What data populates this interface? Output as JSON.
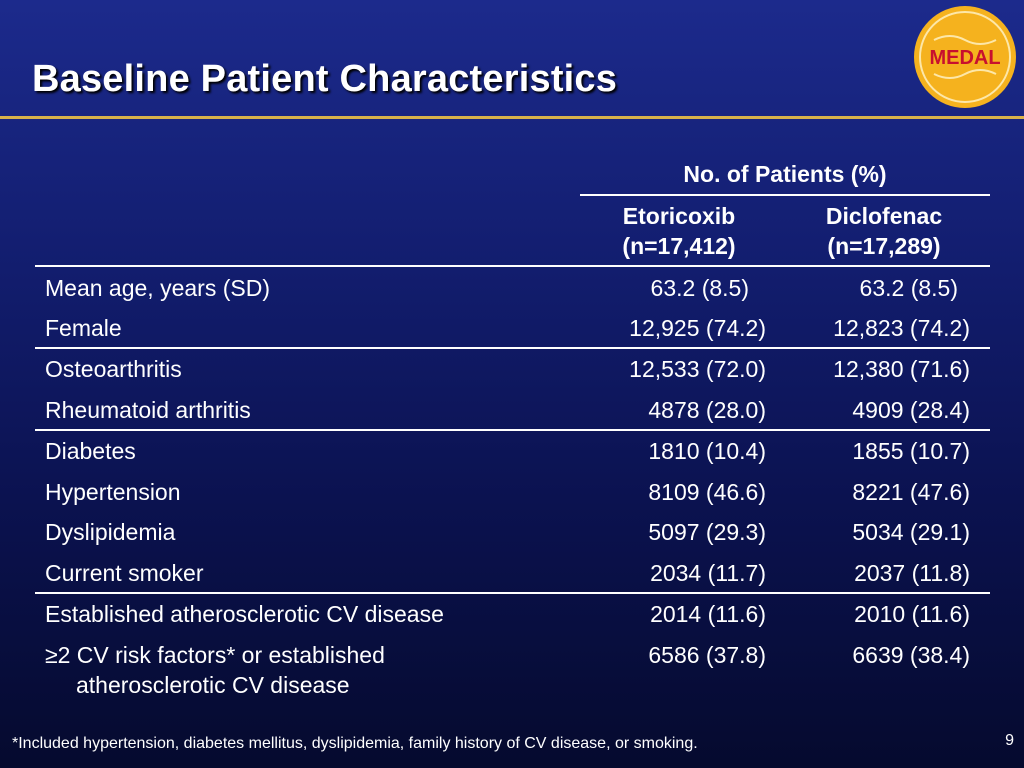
{
  "slide": {
    "title": "Baseline Patient Characteristics",
    "logo_text": "MEDAL",
    "page_number": "9",
    "footnote": "*Included hypertension, diabetes mellitus, dyslipidemia, family history of CV disease, or smoking.",
    "colors": {
      "title_rule": "#d8b24a",
      "logo": "#f5b21e",
      "logo_text": "#c8102e"
    }
  },
  "table": {
    "group_header": "No. of Patients (%)",
    "columns": [
      {
        "name": "Etoricoxib",
        "n": "(n=17,412)"
      },
      {
        "name": "Diclofenac",
        "n": "(n=17,289)"
      }
    ],
    "rows": [
      {
        "label": "Mean age, years (SD)",
        "v1": "63.2 (8.5)",
        "v2": "63.2 (8.5)"
      },
      {
        "label": "Female",
        "v1": "12,925 (74.2)",
        "v2": "12,823 (74.2)"
      },
      {
        "label": "Osteoarthritis",
        "v1": "12,533 (72.0)",
        "v2": "12,380 (71.6)"
      },
      {
        "label": "Rheumatoid arthritis",
        "v1": "4878 (28.0)",
        "v2": "4909 (28.4)"
      },
      {
        "label": "Diabetes",
        "v1": "1810 (10.4)",
        "v2": "1855 (10.7)"
      },
      {
        "label": "Hypertension",
        "v1": "8109 (46.6)",
        "v2": "8221 (47.6)"
      },
      {
        "label": "Dyslipidemia",
        "v1": "5097 (29.3)",
        "v2": "5034 (29.1)"
      },
      {
        "label": "Current smoker",
        "v1": "2034 (11.7)",
        "v2": "2037 (11.8)"
      },
      {
        "label": "Established atherosclerotic CV disease",
        "v1": "2014 (11.6)",
        "v2": "2010 (11.6)"
      },
      {
        "label": "≥2 CV risk factors* or established",
        "label_line2": "atherosclerotic CV disease",
        "v1": "6586 (37.8)",
        "v2": "6639 (38.4)"
      }
    ]
  }
}
